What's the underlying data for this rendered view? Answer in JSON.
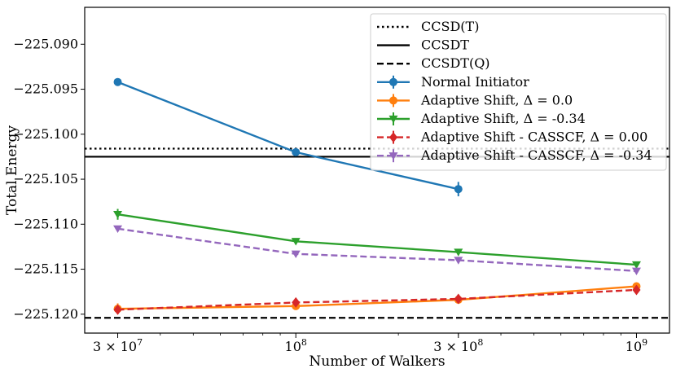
{
  "chart_data": {
    "type": "line",
    "xscale": "log",
    "xlabel": "Number of Walkers",
    "ylabel": "Total Energy",
    "xlim": [
      24000000.0,
      1250000000.0
    ],
    "ylim": [
      -225.1221,
      -225.0859
    ],
    "grid": false,
    "legend_position": "top-right",
    "xticks": [
      {
        "value": 30000000.0,
        "label": "3 × 10",
        "exp": "7"
      },
      {
        "value": 100000000.0,
        "label": "10",
        "exp": "8"
      },
      {
        "value": 300000000.0,
        "label": "3 × 10",
        "exp": "8"
      },
      {
        "value": 1000000000.0,
        "label": "10",
        "exp": "9"
      }
    ],
    "yticks": [
      {
        "value": -225.09,
        "label": "−225.090"
      },
      {
        "value": -225.095,
        "label": "−225.095"
      },
      {
        "value": -225.1,
        "label": "−225.100"
      },
      {
        "value": -225.105,
        "label": "−225.105"
      },
      {
        "value": -225.11,
        "label": "−225.110"
      },
      {
        "value": -225.115,
        "label": "−225.115"
      },
      {
        "value": -225.12,
        "label": "−225.120"
      }
    ],
    "reference_lines": [
      {
        "name": "CCSD(T)",
        "y": -225.1016,
        "color": "#000000",
        "style": "dotted"
      },
      {
        "name": "CCSDT",
        "y": -225.1025,
        "color": "#000000",
        "style": "solid"
      },
      {
        "name": "CCSDT(Q)",
        "y": -225.1204,
        "color": "#000000",
        "style": "dashed"
      }
    ],
    "series": [
      {
        "name": "Normal Initiator",
        "color": "#1f77b4",
        "marker": "circle",
        "linestyle": "solid",
        "x": [
          30000000.0,
          100000000.0,
          300000000.0
        ],
        "y": [
          -225.0942,
          -225.102,
          -225.1061
        ],
        "err": [
          0.0004,
          0.0002,
          0.0008
        ]
      },
      {
        "name": "Adaptive Shift, Δ = 0.0",
        "color": "#ff7f0e",
        "marker": "circle",
        "linestyle": "solid",
        "x": [
          30000000.0,
          100000000.0,
          300000000.0,
          1000000000.0
        ],
        "y": [
          -225.1194,
          -225.1191,
          -225.1184,
          -225.1169
        ],
        "err": [
          0.0006,
          0.0002,
          0.0002,
          0.0002
        ]
      },
      {
        "name": "Adaptive Shift, Δ = -0.34",
        "color": "#2ca02c",
        "marker": "triangle-down",
        "linestyle": "solid",
        "x": [
          30000000.0,
          100000000.0,
          300000000.0,
          1000000000.0
        ],
        "y": [
          -225.1089,
          -225.1119,
          -225.1131,
          -225.1145
        ],
        "err": [
          0.0006,
          0.0002,
          0.0002,
          0.0002
        ]
      },
      {
        "name": "Adaptive Shift - CASSCF, Δ = 0.00",
        "color": "#d62728",
        "marker": "diamond",
        "linestyle": "dashed",
        "x": [
          30000000.0,
          100000000.0,
          300000000.0,
          1000000000.0
        ],
        "y": [
          -225.1195,
          -225.1187,
          -225.1183,
          -225.1173
        ],
        "err": [
          0.0003,
          0.0002,
          0.0002,
          0.0002
        ]
      },
      {
        "name": "Adaptive Shift - CASSCF, Δ = -0.34",
        "color": "#9467bd",
        "marker": "triangle-down",
        "linestyle": "dashed",
        "x": [
          30000000.0,
          100000000.0,
          300000000.0,
          1000000000.0
        ],
        "y": [
          -225.1105,
          -225.1133,
          -225.114,
          -225.1152
        ],
        "err": [
          0.0002,
          0.0002,
          0.0002,
          0.0002
        ]
      }
    ],
    "legend": [
      {
        "label": "CCSD(T)",
        "ref": "CCSD(T)"
      },
      {
        "label": "CCSDT",
        "ref": "CCSDT"
      },
      {
        "label": "CCSDT(Q)",
        "ref": "CCSDT(Q)"
      },
      {
        "label": "Normal Initiator",
        "ref": "Normal Initiator"
      },
      {
        "label": "Adaptive Shift, Δ =  0.0",
        "ref": "Adaptive Shift, Δ = 0.0"
      },
      {
        "label": "Adaptive Shift, Δ = -0.34",
        "ref": "Adaptive Shift, Δ = -0.34"
      },
      {
        "label": "Adaptive Shift - CASSCF, Δ = 0.00",
        "ref": "Adaptive Shift - CASSCF, Δ = 0.00"
      },
      {
        "label": "Adaptive Shift - CASSCF, Δ = -0.34",
        "ref": "Adaptive Shift - CASSCF, Δ = -0.34"
      }
    ]
  }
}
